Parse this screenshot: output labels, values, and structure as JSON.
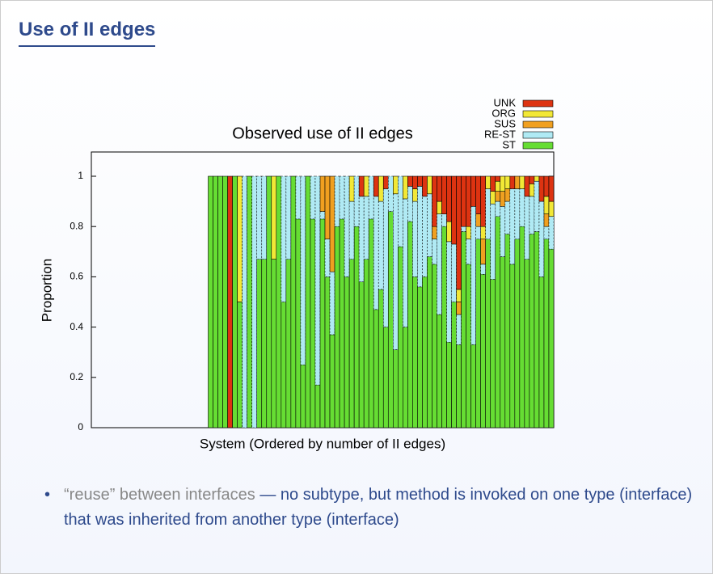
{
  "header": {
    "title": "Use of II edges"
  },
  "chart_data": {
    "type": "stacked-bar",
    "title": "Observed use of II edges",
    "x_label": "System (Ordered by number of II edges)",
    "y_label": "Proportion",
    "categories": [
      null,
      null,
      null,
      null,
      null,
      null,
      null,
      null,
      null,
      null,
      null,
      null,
      null,
      null,
      null,
      null,
      null,
      null,
      null,
      null,
      null,
      null,
      null,
      null,
      null,
      null,
      null,
      null,
      null,
      null,
      null,
      null,
      null,
      null,
      null,
      null,
      null,
      null,
      null,
      null,
      null,
      null,
      null,
      null,
      null,
      null,
      null,
      null,
      null,
      null,
      null,
      null,
      null,
      null,
      null,
      null,
      null,
      null,
      null,
      null,
      null,
      null,
      null,
      null,
      null,
      null,
      null,
      null,
      null,
      null,
      null,
      null,
      null,
      null,
      null,
      null,
      null,
      null,
      null,
      null,
      null,
      null,
      null,
      null,
      null,
      null,
      null,
      null,
      null,
      null,
      null,
      null,
      null,
      null,
      null
    ],
    "series": [
      {
        "name": "ST",
        "color": "#66dd33",
        "values": [
          0,
          0,
          0,
          0,
          0,
          0,
          0,
          0,
          0,
          0,
          0,
          0,
          0,
          0,
          0,
          0,
          0,
          0,
          0,
          0,
          0,
          0,
          0,
          0,
          1,
          1,
          1,
          1,
          0,
          1,
          0.5,
          0,
          1,
          0,
          0.67,
          0.67,
          1,
          0.67,
          1,
          0.5,
          0.67,
          1,
          0.83,
          0.25,
          1,
          0.83,
          0.17,
          0.83,
          0.6,
          0.37,
          0.8,
          0.83,
          0.6,
          0.67,
          0.8,
          0.58,
          0.67,
          0.83,
          0.47,
          0.55,
          0.4,
          0.86,
          0.31,
          0.72,
          0.4,
          0.82,
          0.6,
          0.56,
          0.6,
          0.68,
          0.65,
          0.45,
          0.8,
          0.34,
          0.5,
          0.33,
          0.78,
          0.65,
          0.33,
          0.75,
          0.61,
          0.75,
          0.59,
          0.84,
          0.68,
          0.77,
          0.65,
          0.75,
          0.8,
          0.67,
          0.77,
          0.78,
          0.6,
          0.75,
          0.71
        ]
      },
      {
        "name": "RE-ST",
        "color": "#b0eaf4",
        "values": [
          0,
          0,
          0,
          0,
          0,
          0,
          0,
          0,
          0,
          0,
          0,
          0,
          0,
          0,
          0,
          0,
          0,
          0,
          0,
          0,
          0,
          0,
          0,
          0,
          0,
          0,
          0,
          0,
          0,
          0,
          0,
          1,
          0,
          1,
          0.33,
          0.33,
          0,
          0,
          0,
          0.5,
          0.33,
          0,
          0.17,
          0.75,
          0,
          0.17,
          0.83,
          0.03,
          0.15,
          0.25,
          0.2,
          0.17,
          0.4,
          0.23,
          0.2,
          0.34,
          0.25,
          0.17,
          0.45,
          0.35,
          0.55,
          0.14,
          0.62,
          0.28,
          0.51,
          0.14,
          0.3,
          0.4,
          0.32,
          0.25,
          0.1,
          0.4,
          0.05,
          0.4,
          0.23,
          0.12,
          0.02,
          0.1,
          0.55,
          0.05,
          0.04,
          0.2,
          0.3,
          0.06,
          0.2,
          0.13,
          0.3,
          0.2,
          0.15,
          0.25,
          0.15,
          0.2,
          0.3,
          0.05,
          0.13
        ]
      },
      {
        "name": "SUS",
        "color": "#f0a020",
        "values": [
          0,
          0,
          0,
          0,
          0,
          0,
          0,
          0,
          0,
          0,
          0,
          0,
          0,
          0,
          0,
          0,
          0,
          0,
          0,
          0,
          0,
          0,
          0,
          0,
          0,
          0,
          0,
          0,
          0,
          0,
          0,
          0,
          0,
          0,
          0,
          0,
          0,
          0,
          0,
          0,
          0,
          0,
          0,
          0,
          0,
          0,
          0,
          0.14,
          0.25,
          0.38,
          0,
          0,
          0,
          0,
          0,
          0,
          0,
          0,
          0,
          0,
          0,
          0,
          0,
          0,
          0,
          0,
          0,
          0,
          0,
          0,
          0.05,
          0,
          0,
          0,
          0,
          0.05,
          0,
          0,
          0,
          0.05,
          0.1,
          0,
          0,
          0.04,
          0.06,
          0.05,
          0,
          0.05,
          0,
          0,
          0,
          0,
          0,
          0.05,
          0
        ]
      },
      {
        "name": "ORG",
        "color": "#f2e836",
        "values": [
          0,
          0,
          0,
          0,
          0,
          0,
          0,
          0,
          0,
          0,
          0,
          0,
          0,
          0,
          0,
          0,
          0,
          0,
          0,
          0,
          0,
          0,
          0,
          0,
          0,
          0,
          0,
          0,
          0,
          0,
          0.5,
          0,
          0,
          0,
          0,
          0,
          0,
          0.33,
          0,
          0,
          0,
          0,
          0,
          0,
          0,
          0,
          0,
          0,
          0,
          0,
          0,
          0,
          0,
          0.1,
          0,
          0,
          0.08,
          0,
          0,
          0.1,
          0,
          0,
          0.07,
          0,
          0.09,
          0,
          0.05,
          0,
          0,
          0.07,
          0,
          0.05,
          0,
          0.08,
          0,
          0.05,
          0,
          0.05,
          0,
          0,
          0.05,
          0.05,
          0.05,
          0.04,
          0.06,
          0.05,
          0,
          0,
          0.05,
          0,
          0.05,
          0.02,
          0,
          0.07,
          0.06
        ]
      },
      {
        "name": "UNK",
        "color": "#dd3311",
        "values": [
          0,
          0,
          0,
          0,
          0,
          0,
          0,
          0,
          0,
          0,
          0,
          0,
          0,
          0,
          0,
          0,
          0,
          0,
          0,
          0,
          0,
          0,
          0,
          0,
          0,
          0,
          0,
          0,
          1,
          0,
          0,
          0,
          0,
          0,
          0,
          0,
          0,
          0,
          0,
          0,
          0,
          0,
          0,
          0,
          0,
          0,
          0,
          0,
          0,
          0,
          0,
          0,
          0,
          0,
          0,
          0.08,
          0,
          0,
          0.08,
          0,
          0.05,
          0,
          0,
          0,
          0,
          0.04,
          0.05,
          0.04,
          0.08,
          0,
          0.2,
          0.1,
          0.15,
          0.18,
          0.27,
          0.45,
          0.2,
          0.2,
          0.12,
          0.15,
          0.2,
          0,
          0.06,
          0.02,
          0,
          0,
          0.05,
          0,
          0,
          0.08,
          0.03,
          0,
          0.1,
          0.08,
          0.1
        ]
      }
    ],
    "ylim": [
      0,
      1
    ],
    "yticks": [
      0,
      0.2,
      0.4,
      0.6,
      0.8,
      1
    ]
  },
  "bullet": {
    "quote": "“reuse” between interfaces",
    "text": "— no subtype, but method is invoked on one type (interface) that was inherited from another type (interface)"
  }
}
